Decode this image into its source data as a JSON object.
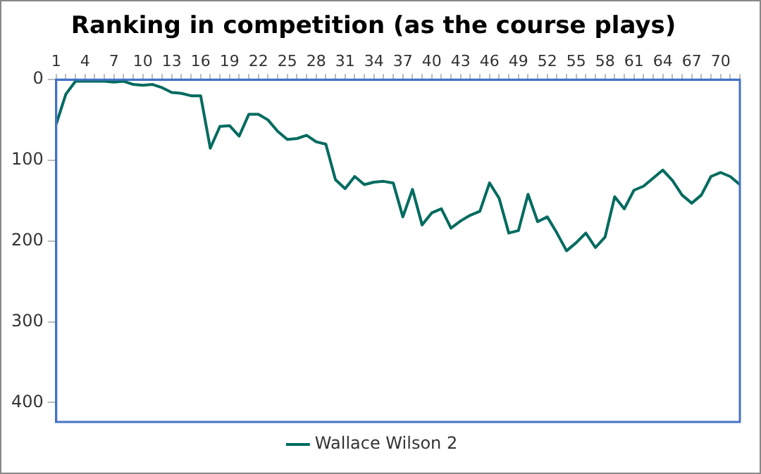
{
  "chart_data": {
    "type": "line",
    "title": "Ranking in competition (as the course plays)",
    "categories": [
      "1",
      null,
      null,
      "4",
      null,
      null,
      "7",
      null,
      null,
      "10",
      null,
      null,
      "13",
      null,
      null,
      "16",
      null,
      null,
      "19",
      null,
      null,
      "22",
      null,
      null,
      "25",
      null,
      null,
      "28",
      null,
      null,
      "31",
      null,
      null,
      "34",
      null,
      null,
      "37",
      null,
      null,
      "40",
      null,
      null,
      "43",
      null,
      null,
      "46",
      null,
      null,
      "49",
      null,
      null,
      "52",
      null,
      null,
      "55",
      null,
      null,
      "58",
      null,
      null,
      "61",
      null,
      null,
      "64",
      null,
      null,
      "67",
      null,
      null,
      "70",
      null,
      null
    ],
    "series": [
      {
        "name": "Wallace Wilson 2",
        "color": "#006b5f",
        "values": [
          55,
          18,
          2,
          2,
          2,
          2,
          3,
          2,
          6,
          7,
          6,
          10,
          16,
          17,
          20,
          20,
          85,
          58,
          57,
          70,
          43,
          43,
          50,
          64,
          74,
          73,
          69,
          77,
          80,
          124,
          135,
          120,
          130,
          127,
          126,
          128,
          170,
          136,
          180,
          165,
          160,
          184,
          175,
          168,
          163,
          128,
          147,
          190,
          187,
          142,
          176,
          170,
          190,
          212,
          202,
          190,
          208,
          195,
          145,
          160,
          137,
          132,
          122,
          112,
          125,
          143,
          153,
          143,
          120,
          115,
          120,
          130
        ]
      }
    ],
    "ylim": [
      424,
      0
    ],
    "yticks": [
      0,
      100,
      200,
      300,
      400
    ],
    "grid": false,
    "legend": "bottom",
    "marker": "none",
    "line_style": "solid"
  }
}
